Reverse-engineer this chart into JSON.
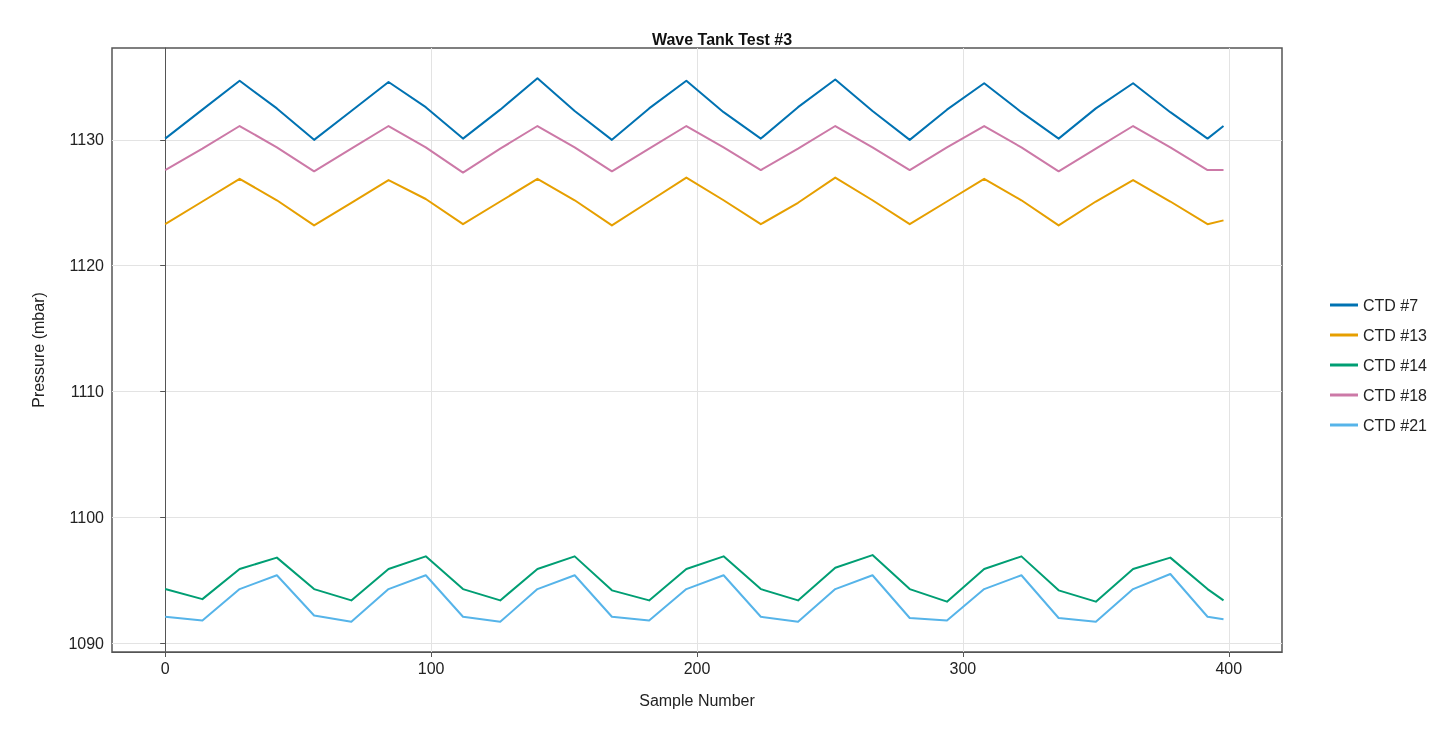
{
  "chart_data": {
    "type": "line",
    "title": "Wave Tank Test #3",
    "xlabel": "Sample Number",
    "ylabel": "Pressure (mbar)",
    "x": [
      0,
      14,
      28,
      42,
      56,
      70,
      84,
      98,
      112,
      126,
      140,
      154,
      168,
      182,
      196,
      210,
      224,
      238,
      252,
      266,
      280,
      294,
      308,
      322,
      336,
      350,
      364,
      378,
      392,
      398
    ],
    "series": [
      {
        "name": "CTD #7",
        "color": "#0072b2",
        "values": [
          1130.1,
          1132.4,
          1134.7,
          1132.5,
          1130.0,
          1132.3,
          1134.6,
          1132.6,
          1130.1,
          1132.4,
          1134.9,
          1132.3,
          1130.0,
          1132.5,
          1134.7,
          1132.2,
          1130.1,
          1132.6,
          1134.8,
          1132.3,
          1130.0,
          1132.4,
          1134.5,
          1132.2,
          1130.1,
          1132.5,
          1134.5,
          1132.2,
          1130.1,
          1131.1
        ]
      },
      {
        "name": "CTD #13",
        "color": "#e69f00",
        "values": [
          1123.3,
          1125.1,
          1126.9,
          1125.2,
          1123.2,
          1125.0,
          1126.8,
          1125.3,
          1123.3,
          1125.1,
          1126.9,
          1125.2,
          1123.2,
          1125.1,
          1127.0,
          1125.2,
          1123.3,
          1125.0,
          1127.0,
          1125.2,
          1123.3,
          1125.1,
          1126.9,
          1125.2,
          1123.2,
          1125.1,
          1126.8,
          1125.1,
          1123.3,
          1123.6
        ]
      },
      {
        "name": "CTD #14",
        "color": "#009e73",
        "values": [
          1094.3,
          1093.5,
          1095.9,
          1096.8,
          1094.3,
          1093.4,
          1095.9,
          1096.9,
          1094.3,
          1093.4,
          1095.9,
          1096.9,
          1094.2,
          1093.4,
          1095.9,
          1096.9,
          1094.3,
          1093.4,
          1096.0,
          1097.0,
          1094.3,
          1093.3,
          1095.9,
          1096.9,
          1094.2,
          1093.3,
          1095.9,
          1096.8,
          1094.3,
          1093.4
        ]
      },
      {
        "name": "CTD #18",
        "color": "#cc79a7",
        "values": [
          1127.6,
          1129.3,
          1131.1,
          1129.4,
          1127.5,
          1129.3,
          1131.1,
          1129.4,
          1127.4,
          1129.3,
          1131.1,
          1129.4,
          1127.5,
          1129.3,
          1131.1,
          1129.4,
          1127.6,
          1129.3,
          1131.1,
          1129.4,
          1127.6,
          1129.4,
          1131.1,
          1129.4,
          1127.5,
          1129.3,
          1131.1,
          1129.4,
          1127.6,
          1127.6
        ]
      },
      {
        "name": "CTD #21",
        "color": "#56b4e9",
        "values": [
          1092.1,
          1091.8,
          1094.3,
          1095.4,
          1092.2,
          1091.7,
          1094.3,
          1095.4,
          1092.1,
          1091.7,
          1094.3,
          1095.4,
          1092.1,
          1091.8,
          1094.3,
          1095.4,
          1092.1,
          1091.7,
          1094.3,
          1095.4,
          1092.0,
          1091.8,
          1094.3,
          1095.4,
          1092.0,
          1091.7,
          1094.3,
          1095.5,
          1092.1,
          1091.9
        ]
      }
    ],
    "xlim": [
      -20,
      420
    ],
    "xticks": [
      0,
      100,
      200,
      300,
      400
    ],
    "ylim": [
      1089.3,
      1137.3
    ],
    "yticks": [
      1090,
      1100,
      1110,
      1120,
      1130
    ],
    "grid": true,
    "legend": "right",
    "marker": "none",
    "line_style": "solid"
  }
}
